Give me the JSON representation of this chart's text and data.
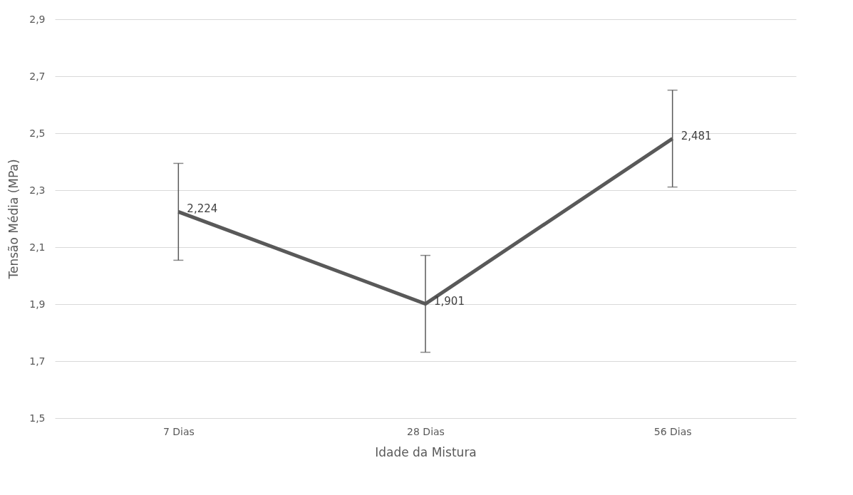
{
  "chart_data": {
    "type": "line",
    "xlabel": "Idade da Mistura",
    "ylabel": "Tensão Média (MPa)",
    "categories": [
      "7 Dias",
      "28 Dias",
      "56  Dias"
    ],
    "series": [
      {
        "color": "#595959",
        "values": [
          2.224,
          1.901,
          2.481
        ],
        "errors": [
          0.17,
          0.17,
          0.17
        ]
      }
    ],
    "ylim": [
      1.5,
      2.9
    ],
    "yticks": [
      {
        "value": 1.5,
        "label": "1,5"
      },
      {
        "value": 1.7,
        "label": "1,7"
      },
      {
        "value": 1.9,
        "label": "1,9"
      },
      {
        "value": 2.1,
        "label": "2,1"
      },
      {
        "value": 2.3,
        "label": "2,3"
      },
      {
        "value": 2.5,
        "label": "2,5"
      },
      {
        "value": 2.7,
        "label": "2,7"
      },
      {
        "value": 2.9,
        "label": "2,9"
      }
    ],
    "value_labels": [
      "2,224",
      "1,901",
      "2,481"
    ],
    "grid": "y",
    "marker": "none",
    "line_style": "solid"
  }
}
